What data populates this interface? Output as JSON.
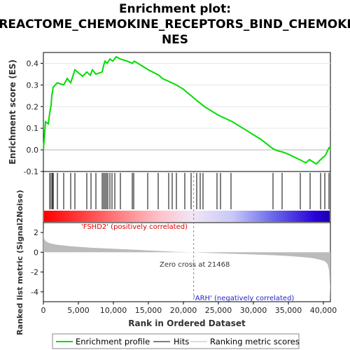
{
  "chart_data": {
    "type": "line",
    "title_lines": [
      "Enrichment plot:",
      "REACTOME_CHEMOKINE_RECEPTORS_BIND_CHEMOKI",
      "NES"
    ],
    "es_panel": {
      "ylabel": "Enrichment score (ES)",
      "ylim": [
        -0.1,
        0.45
      ],
      "yticks": [
        -0.1,
        0.0,
        0.1,
        0.2,
        0.3,
        0.4
      ],
      "ytick_labels": [
        "-0.1",
        "0.0",
        "0.1",
        "0.2",
        "0.3",
        "0.4"
      ],
      "series": [
        {
          "name": "Enrichment profile",
          "color": "#00dd00",
          "x": [
            0,
            300,
            700,
            900,
            1100,
            1200,
            1400,
            2000,
            2900,
            3400,
            3900,
            4500,
            5600,
            6200,
            6700,
            7000,
            7500,
            8400,
            8600,
            8800,
            9100,
            9500,
            9900,
            10400,
            11000,
            12000,
            12700,
            13000,
            14500,
            15000,
            16500,
            17000,
            18000,
            19000,
            20000,
            21468,
            23000,
            25000,
            27000,
            29000,
            31000,
            32800,
            33500,
            34200,
            35000,
            36600,
            37500,
            38000,
            39000,
            39600,
            40300,
            40800,
            41000
          ],
          "y": [
            0.0,
            0.13,
            0.12,
            0.17,
            0.205,
            0.25,
            0.29,
            0.31,
            0.3,
            0.33,
            0.31,
            0.37,
            0.34,
            0.36,
            0.345,
            0.37,
            0.35,
            0.36,
            0.39,
            0.41,
            0.4,
            0.42,
            0.41,
            0.43,
            0.42,
            0.41,
            0.4,
            0.41,
            0.38,
            0.37,
            0.345,
            0.33,
            0.315,
            0.3,
            0.28,
            0.24,
            0.2,
            0.16,
            0.13,
            0.09,
            0.05,
            0.005,
            -0.005,
            -0.01,
            -0.02,
            -0.045,
            -0.06,
            -0.045,
            -0.065,
            -0.045,
            -0.025,
            0.01,
            0.005
          ]
        }
      ]
    },
    "hits": [
      900,
      1100,
      1300,
      1400,
      2000,
      2900,
      3900,
      4500,
      6200,
      6800,
      7500,
      8400,
      8600,
      8800,
      9000,
      9200,
      9500,
      9800,
      10200,
      11000,
      12700,
      12900,
      14900,
      16400,
      17900,
      18400,
      19000,
      20200,
      21100,
      21900,
      22400,
      22800,
      24800,
      25300,
      26800,
      32800,
      34100,
      36700,
      38100,
      39600,
      40200,
      40800
    ],
    "rank_panel": {
      "ylabel": "Ranked list metric (Signal2Noise)",
      "xlabel": "Rank in Ordered Dataset",
      "ylim": [
        -5,
        3
      ],
      "yticks": [
        -4,
        -2,
        0,
        2
      ],
      "ytick_labels": [
        "-4",
        "-2",
        "0",
        "2"
      ],
      "x_max": 41000,
      "xticks": [
        0,
        5000,
        10000,
        15000,
        20000,
        25000,
        30000,
        35000,
        40000
      ],
      "xtick_labels": [
        "0",
        "5,000",
        "10,000",
        "15,000",
        "20,000",
        "25,000",
        "30,000",
        "35,000",
        "40,000"
      ],
      "metric_x": [
        0,
        50,
        150,
        300,
        600,
        1000,
        2000,
        4000,
        7000,
        10000,
        13000,
        16000,
        19000,
        21468,
        24000,
        27000,
        30000,
        33000,
        35000,
        37000,
        38500,
        39500,
        40200,
        40600,
        40800,
        40950,
        41000
      ],
      "metric_y": [
        2.5,
        1.6,
        1.3,
        1.15,
        1.0,
        0.9,
        0.75,
        0.6,
        0.45,
        0.35,
        0.25,
        0.15,
        0.05,
        0.0,
        -0.08,
        -0.15,
        -0.22,
        -0.3,
        -0.38,
        -0.48,
        -0.6,
        -0.75,
        -0.9,
        -1.2,
        -1.8,
        -3.5,
        -4.9
      ],
      "zero_cross_label": "Zero cross at 21468",
      "zero_cross": 21468,
      "positive_label": "'FSHD2' (positively correlated)",
      "negative_label": "'ARH' (negatively correlated)"
    },
    "legend": [
      {
        "label": "Enrichment profile",
        "color": "#00dd00"
      },
      {
        "label": "Hits",
        "color": "#000000"
      },
      {
        "label": "Ranking metric scores",
        "color": "#bbbbbb"
      }
    ]
  }
}
